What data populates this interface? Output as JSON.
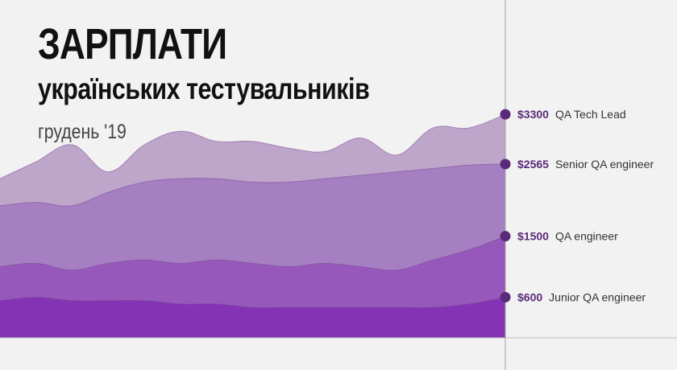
{
  "header": {
    "title": "ЗАРПЛАТИ",
    "subtitle": "українських тестувальників",
    "date": "грудень '19"
  },
  "chart_data": {
    "type": "area",
    "stacked": false,
    "x_points": 15,
    "series": [
      {
        "name": "QA Tech Lead",
        "value_label": "$3300",
        "color": "#bea6ca",
        "values": [
          2350,
          2600,
          2850,
          2450,
          2850,
          3050,
          2900,
          2900,
          2800,
          2750,
          2950,
          2700,
          3100,
          3100,
          3300
        ]
      },
      {
        "name": "Senior QA engineer",
        "value_label": "$2565",
        "color": "#a57fc1",
        "values": [
          1950,
          2000,
          1950,
          2150,
          2300,
          2350,
          2350,
          2300,
          2300,
          2350,
          2400,
          2450,
          2500,
          2550,
          2565
        ]
      },
      {
        "name": "QA engineer",
        "value_label": "$1500",
        "color": "#9758bb",
        "values": [
          1050,
          1100,
          1000,
          1100,
          1150,
          1100,
          1150,
          1100,
          1050,
          1100,
          1050,
          1000,
          1150,
          1300,
          1500
        ]
      },
      {
        "name": "Junior QA engineer",
        "value_label": "$600",
        "color": "#8433b4",
        "values": [
          550,
          600,
          550,
          550,
          550,
          500,
          500,
          450,
          450,
          450,
          450,
          450,
          450,
          500,
          600
        ]
      }
    ],
    "ylim": [
      0,
      3800
    ],
    "legend": "right",
    "grid": false
  }
}
